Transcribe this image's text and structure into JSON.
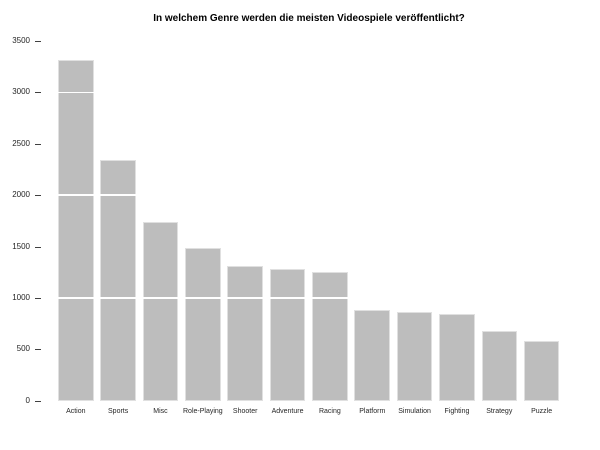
{
  "chart_data": {
    "type": "bar",
    "title": "In welchem Genre werden die meisten Videospiele veröffentlicht?",
    "categories": [
      "Action",
      "Sports",
      "Misc",
      "Role-Playing",
      "Shooter",
      "Adventure",
      "Racing",
      "Platform",
      "Simulation",
      "Fighting",
      "Strategy",
      "Puzzle"
    ],
    "values": [
      3316,
      2346,
      1739,
      1488,
      1310,
      1286,
      1249,
      886,
      867,
      848,
      681,
      582
    ],
    "xlabel": "",
    "ylabel": "",
    "ylim": [
      0,
      3500
    ],
    "yticks": [
      0,
      500,
      1000,
      1500,
      2000,
      2500,
      3000,
      3500
    ],
    "gridlines": {
      "values": [
        1000,
        2000,
        3000
      ],
      "color": "#ffffff"
    },
    "legend": "none",
    "background_color": "#ffffff",
    "bar_color": "#bdbdbd",
    "bar_edge_color": "#e0e0e0",
    "tick_color": "#404040",
    "text_color": "#262626",
    "title_color": "#000000"
  }
}
